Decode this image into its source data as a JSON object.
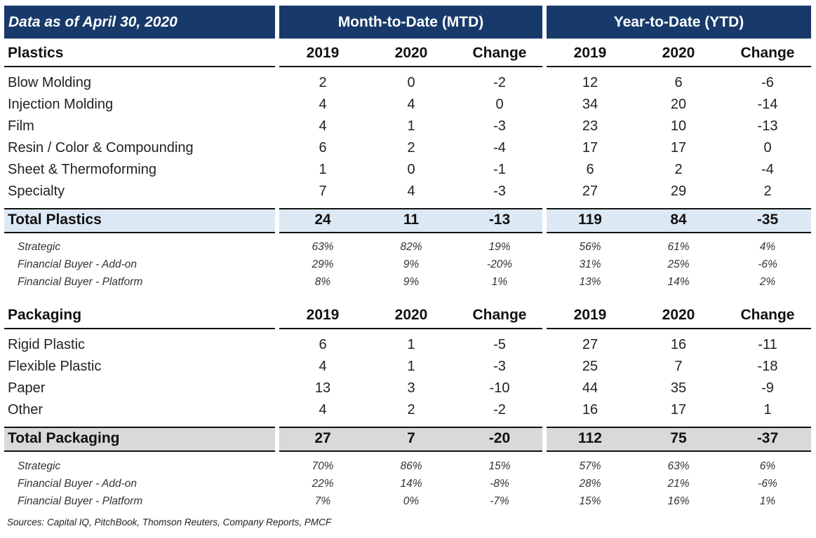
{
  "header": {
    "as_of": "Data as of April 30, 2020",
    "mtd": "Month-to-Date (MTD)",
    "ytd": "Year-to-Date (YTD)"
  },
  "col_headers": [
    "2019",
    "2020",
    "Change",
    "2019",
    "2020",
    "Change"
  ],
  "plastics": {
    "title": "Plastics",
    "rows": [
      {
        "label": "Blow Molding",
        "values": [
          "2",
          "0",
          "-2",
          "12",
          "6",
          "-6"
        ]
      },
      {
        "label": "Injection Molding",
        "values": [
          "4",
          "4",
          "0",
          "34",
          "20",
          "-14"
        ]
      },
      {
        "label": "Film",
        "values": [
          "4",
          "1",
          "-3",
          "23",
          "10",
          "-13"
        ]
      },
      {
        "label": "Resin / Color & Compounding",
        "values": [
          "6",
          "2",
          "-4",
          "17",
          "17",
          "0"
        ]
      },
      {
        "label": "Sheet & Thermoforming",
        "values": [
          "1",
          "0",
          "-1",
          "6",
          "2",
          "-4"
        ]
      },
      {
        "label": "Specialty",
        "values": [
          "7",
          "4",
          "-3",
          "27",
          "29",
          "2"
        ]
      }
    ],
    "total": {
      "label": "Total Plastics",
      "values": [
        "24",
        "11",
        "-13",
        "119",
        "84",
        "-35"
      ]
    },
    "pct": [
      {
        "label": "Strategic",
        "values": [
          "63%",
          "82%",
          "19%",
          "56%",
          "61%",
          "4%"
        ]
      },
      {
        "label": "Financial Buyer - Add-on",
        "values": [
          "29%",
          "9%",
          "-20%",
          "31%",
          "25%",
          "-6%"
        ]
      },
      {
        "label": "Financial Buyer - Platform",
        "values": [
          "8%",
          "9%",
          "1%",
          "13%",
          "14%",
          "2%"
        ]
      }
    ]
  },
  "packaging": {
    "title": "Packaging",
    "rows": [
      {
        "label": "Rigid Plastic",
        "values": [
          "6",
          "1",
          "-5",
          "27",
          "16",
          "-11"
        ]
      },
      {
        "label": "Flexible Plastic",
        "values": [
          "4",
          "1",
          "-3",
          "25",
          "7",
          "-18"
        ]
      },
      {
        "label": "Paper",
        "values": [
          "13",
          "3",
          "-10",
          "44",
          "35",
          "-9"
        ]
      },
      {
        "label": "Other",
        "values": [
          "4",
          "2",
          "-2",
          "16",
          "17",
          "1"
        ]
      }
    ],
    "total": {
      "label": "Total Packaging",
      "values": [
        "27",
        "7",
        "-20",
        "112",
        "75",
        "-37"
      ]
    },
    "pct": [
      {
        "label": "Strategic",
        "values": [
          "70%",
          "86%",
          "15%",
          "57%",
          "63%",
          "6%"
        ]
      },
      {
        "label": "Financial Buyer - Add-on",
        "values": [
          "22%",
          "14%",
          "-8%",
          "28%",
          "21%",
          "-6%"
        ]
      },
      {
        "label": "Financial Buyer - Platform",
        "values": [
          "7%",
          "0%",
          "-7%",
          "15%",
          "16%",
          "1%"
        ]
      }
    ]
  },
  "colors": {
    "header_bg": "#173a6b",
    "plastics_total_bg": "#dce9f5",
    "packaging_total_bg": "#d9d9d9"
  },
  "source": "Sources: Capital IQ, PitchBook, Thomson Reuters, Company Reports, PMCF"
}
